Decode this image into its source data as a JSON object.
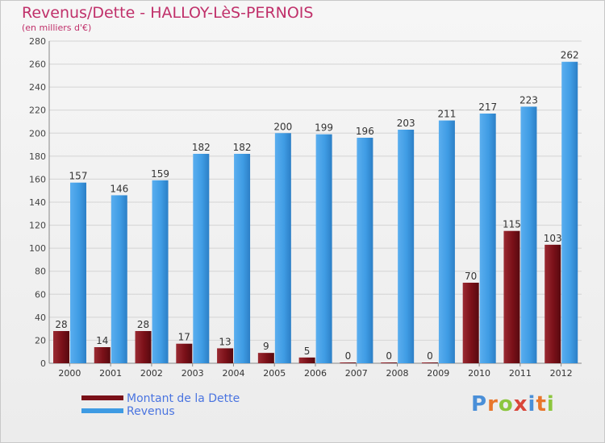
{
  "title": "Revenus/Dette - HALLOY-LèS-PERNOIS",
  "subtitle": "(en milliers d'€)",
  "colors": {
    "debt": "#7a1018",
    "revenue": "#3e9be3",
    "title": "#c0306a",
    "legend_text": "#4a74e0"
  },
  "logo": {
    "letters": [
      "P",
      "r",
      "o",
      "x",
      "i",
      "t",
      "i"
    ],
    "colors": [
      "#4a8fd8",
      "#e8762b",
      "#8cc63e",
      "#d9463a",
      "#4a8fd8",
      "#e8762b",
      "#8cc63e"
    ]
  },
  "chart_data": {
    "type": "bar",
    "title": "Revenus/Dette - HALLOY-LèS-PERNOIS",
    "ylabel": "(en milliers d'€)",
    "xlabel": "",
    "categories": [
      "2000",
      "2001",
      "2002",
      "2003",
      "2004",
      "2005",
      "2006",
      "2007",
      "2008",
      "2009",
      "2010",
      "2011",
      "2012"
    ],
    "series": [
      {
        "name": "Montant de la Dette",
        "color": "#7a1018",
        "values": [
          28,
          14,
          28,
          17,
          13,
          9,
          5,
          0,
          0,
          0,
          70,
          115,
          103
        ]
      },
      {
        "name": "Revenus",
        "color": "#3e9be3",
        "values": [
          157,
          146,
          159,
          182,
          182,
          200,
          199,
          196,
          203,
          211,
          217,
          223,
          262
        ]
      }
    ],
    "ylim": [
      0,
      280
    ],
    "yticks": [
      0,
      20,
      40,
      60,
      80,
      100,
      120,
      140,
      160,
      180,
      200,
      220,
      240,
      260,
      280
    ],
    "grid": true,
    "legend": "bottom-left"
  }
}
